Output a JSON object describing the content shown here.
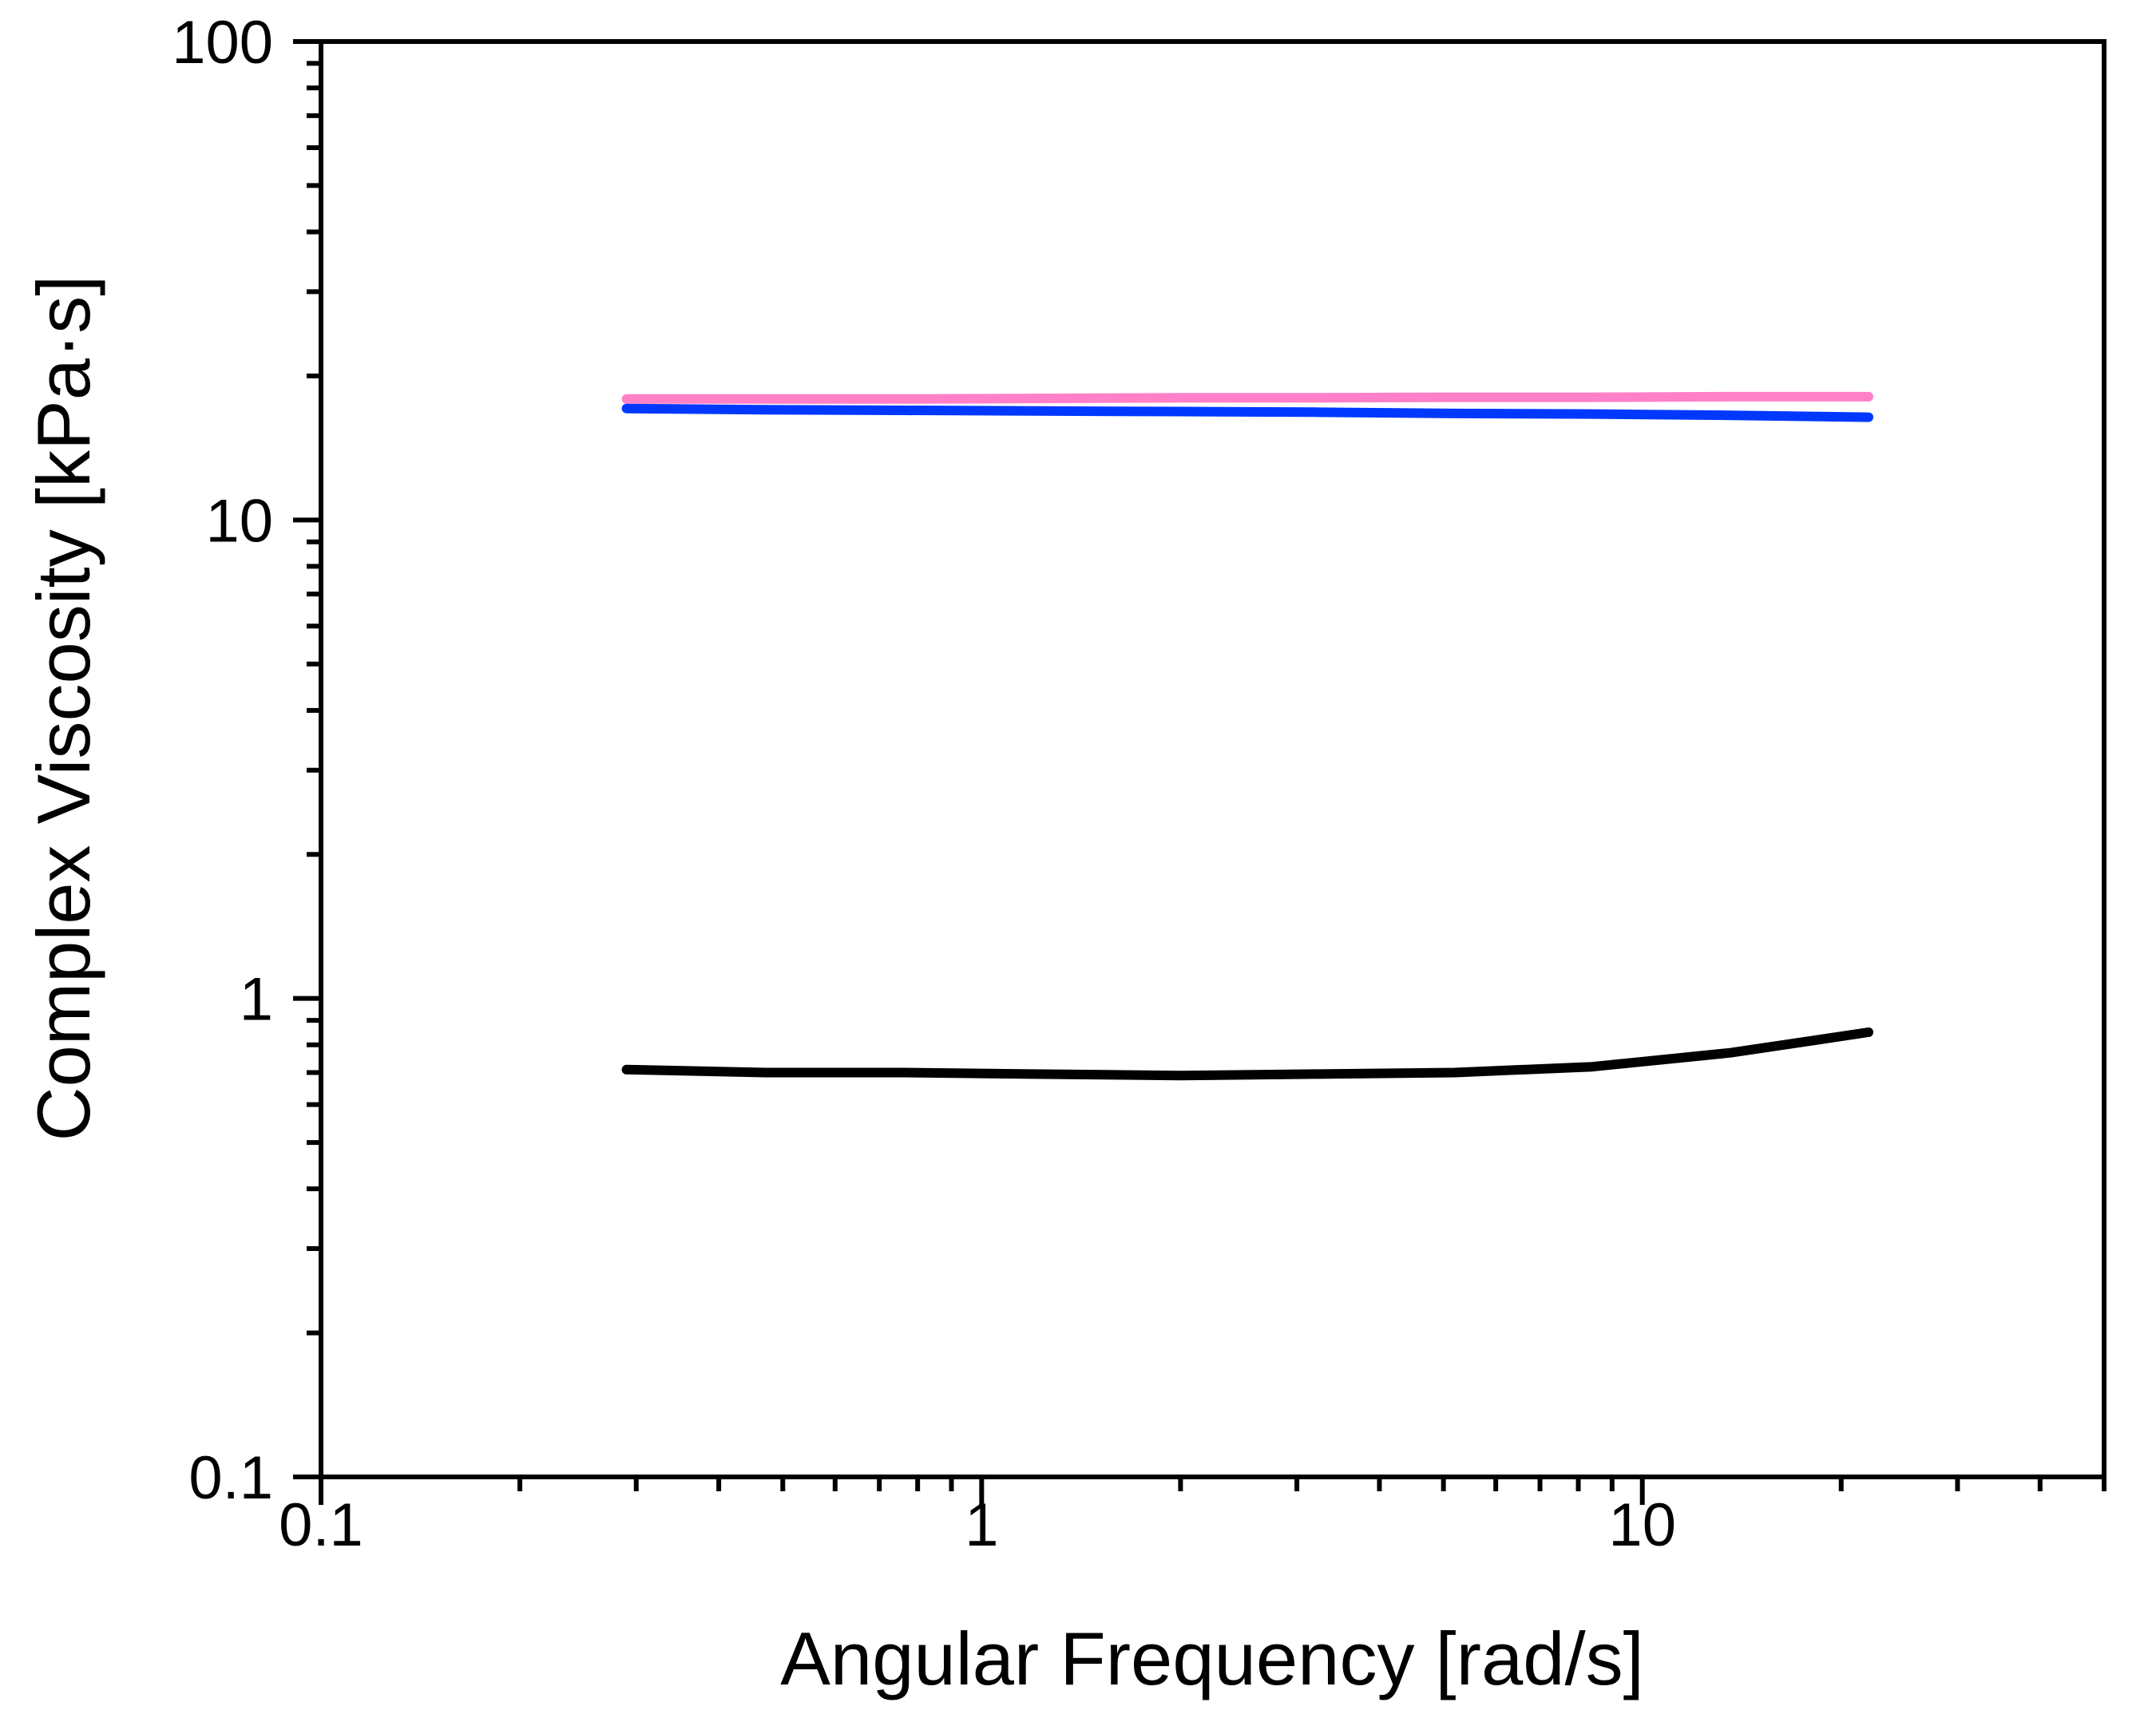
{
  "chart_data": {
    "type": "line",
    "title": "",
    "xlabel": "Angular Frequency [rad/s]",
    "ylabel": "Complex Viscosity [kPa·s]",
    "xscale": "log",
    "yscale": "log",
    "xlim": [
      0.1,
      50
    ],
    "ylim": [
      0.1,
      100
    ],
    "grid": false,
    "legend": null,
    "x_ticks": [
      {
        "value": 0.1,
        "label": "0.1"
      },
      {
        "value": 1,
        "label": "1"
      },
      {
        "value": 10,
        "label": "10"
      }
    ],
    "y_ticks": [
      {
        "value": 0.1,
        "label": "0.1"
      },
      {
        "value": 1,
        "label": "1"
      },
      {
        "value": 10,
        "label": "10"
      },
      {
        "value": 100,
        "label": "100"
      }
    ],
    "x": [
      0.29,
      0.47,
      0.76,
      1.2,
      2.0,
      3.2,
      5.2,
      8.4,
      13.6,
      22
    ],
    "series": [
      {
        "name": "pink",
        "color": "#FF80C8",
        "values": [
          17.9,
          17.9,
          17.9,
          17.95,
          18.0,
          18.0,
          18.05,
          18.05,
          18.1,
          18.1
        ]
      },
      {
        "name": "blue",
        "color": "#0038FF",
        "values": [
          17.1,
          17.0,
          16.95,
          16.9,
          16.85,
          16.8,
          16.7,
          16.65,
          16.55,
          16.4
        ]
      },
      {
        "name": "black",
        "color": "#000000",
        "values": [
          0.71,
          0.7,
          0.7,
          0.695,
          0.69,
          0.695,
          0.7,
          0.72,
          0.77,
          0.85
        ]
      }
    ]
  }
}
